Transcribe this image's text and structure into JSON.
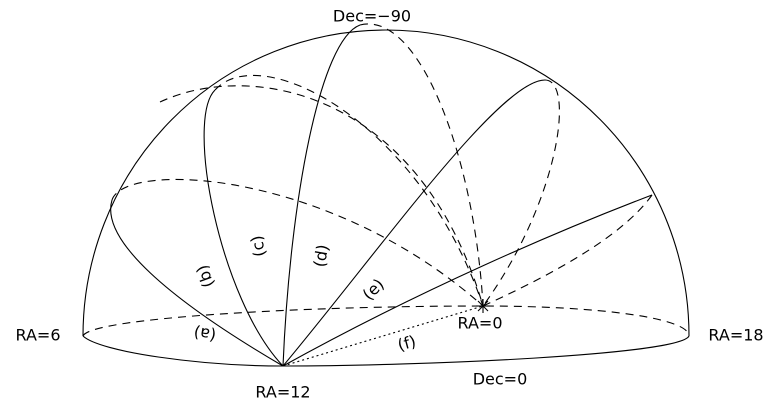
{
  "labels": {
    "top": "Dec=−90",
    "left": "RA=6",
    "bottom": "RA=12",
    "right": "RA=18",
    "center": "RA=0",
    "equator": "Dec=0"
  },
  "circles": [
    "(a)",
    "(b)",
    "(c)",
    "(d)",
    "(e)",
    "(f)"
  ]
}
